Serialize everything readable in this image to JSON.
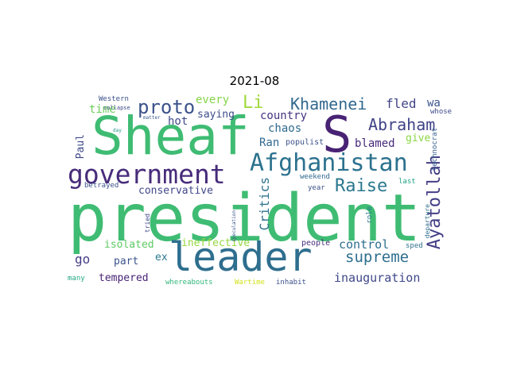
{
  "title": "2021-08",
  "words": [
    {
      "text": "president",
      "color": "#3fbc73"
    },
    {
      "text": "leader",
      "color": "#2e6e8e"
    },
    {
      "text": "Sheaf",
      "color": "#3fbc73"
    },
    {
      "text": "S",
      "color": "#482374"
    },
    {
      "text": "government",
      "color": "#472c7a"
    },
    {
      "text": "Afghanistan",
      "color": "#2c728e"
    },
    {
      "text": "Khamenei",
      "color": "#31688e"
    },
    {
      "text": "Abraham",
      "color": "#404387"
    },
    {
      "text": "proto",
      "color": "#3b528b"
    },
    {
      "text": "Li",
      "color": "#9fda3a"
    },
    {
      "text": "Raise",
      "color": "#2a788e"
    },
    {
      "text": "supreme",
      "color": "#2e6f8e"
    },
    {
      "text": "Ayatollah",
      "color": "#433e85"
    },
    {
      "text": "fled",
      "color": "#414487"
    },
    {
      "text": "wa",
      "color": "#3a548c"
    },
    {
      "text": "every",
      "color": "#86d549"
    },
    {
      "text": "time",
      "color": "#6ccd5a"
    },
    {
      "text": "hot",
      "color": "#3e4989"
    },
    {
      "text": "saying",
      "color": "#3d4d8a"
    },
    {
      "text": "country",
      "color": "#46337f"
    },
    {
      "text": "chaos",
      "color": "#2f6b8e"
    },
    {
      "text": "Ran",
      "color": "#31688e"
    },
    {
      "text": "blamed",
      "color": "#472a7a"
    },
    {
      "text": "give",
      "color": "#8bd646"
    },
    {
      "text": "Paul",
      "color": "#3e4a89"
    },
    {
      "text": "Critics",
      "color": "#2c718e"
    },
    {
      "text": "conservative",
      "color": "#404688"
    },
    {
      "text": "go",
      "color": "#433d84"
    },
    {
      "text": "part",
      "color": "#3b528b"
    },
    {
      "text": "isolated",
      "color": "#5ec962"
    },
    {
      "text": "ineffective",
      "color": "#95d840"
    },
    {
      "text": "ex",
      "color": "#2a788e"
    },
    {
      "text": "control",
      "color": "#2e6d8e"
    },
    {
      "text": "tempered",
      "color": "#482475"
    },
    {
      "text": "inauguration",
      "color": "#3f4889"
    },
    {
      "text": "populist",
      "color": "#3b528b"
    },
    {
      "text": "weekend",
      "color": "#31688e"
    },
    {
      "text": "year",
      "color": "#3b528b"
    },
    {
      "text": "last",
      "color": "#20a386"
    },
    {
      "text": "role",
      "color": "#2a788e"
    },
    {
      "text": "people",
      "color": "#472d7b"
    },
    {
      "text": "sped",
      "color": "#2d708e"
    },
    {
      "text": "Western",
      "color": "#3b518b"
    },
    {
      "text": "collapse",
      "color": "#3e4a89"
    },
    {
      "text": "whose",
      "color": "#3e4989"
    },
    {
      "text": "matter",
      "color": "#375a8c"
    },
    {
      "text": "day",
      "color": "#1f998a"
    },
    {
      "text": "technocrat",
      "color": "#355f8d"
    },
    {
      "text": "departure",
      "color": "#2e6e8e"
    },
    {
      "text": "betrayed",
      "color": "#3b528b"
    },
    {
      "text": "tried",
      "color": "#3e4a89"
    },
    {
      "text": "speculation",
      "color": "#39568c"
    },
    {
      "text": "many",
      "color": "#22a884"
    },
    {
      "text": "whereabouts",
      "color": "#31b57b"
    },
    {
      "text": "Wartime",
      "color": "#d2e21b"
    },
    {
      "text": "inhabit",
      "color": "#3b518b"
    }
  ]
}
